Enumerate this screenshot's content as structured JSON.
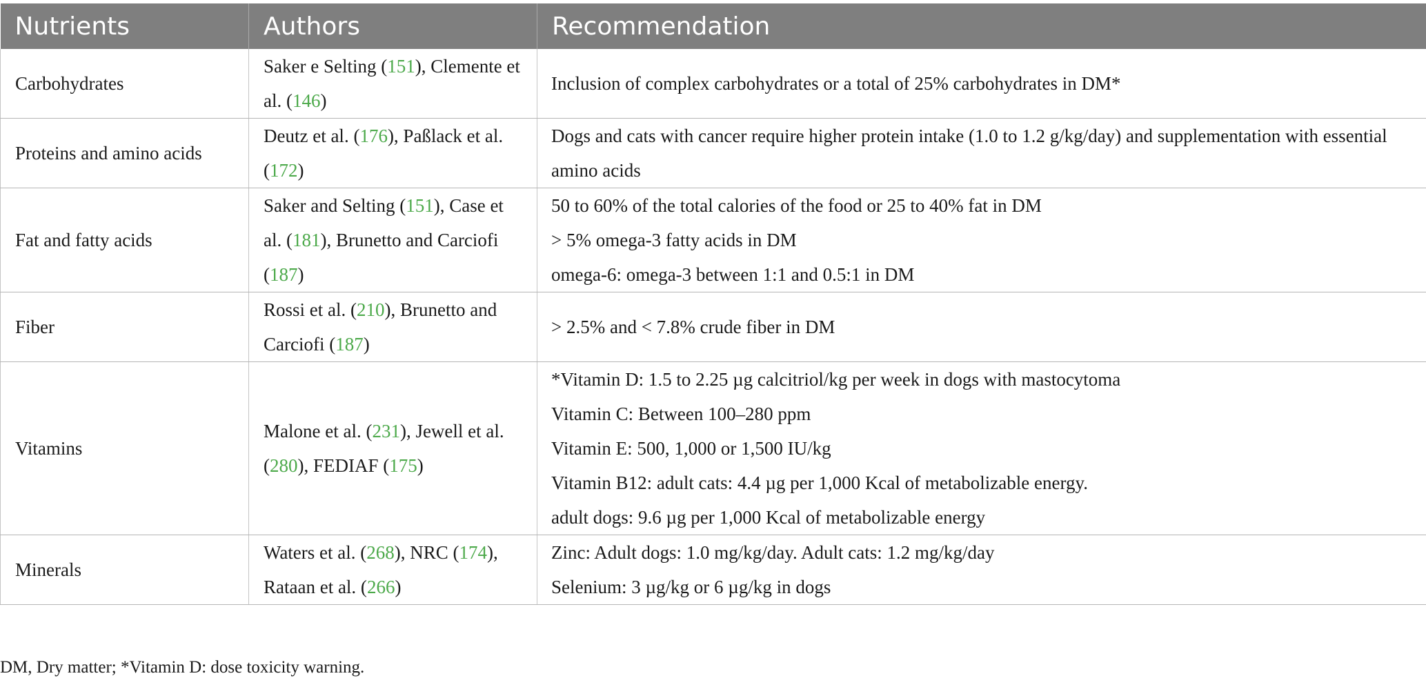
{
  "table": {
    "headers": [
      "Nutrients",
      "Authors",
      "Recommendation"
    ],
    "rows": [
      {
        "nutrient": "Carbohydrates",
        "authors": [
          {
            "text": "Saker e Selting ("
          },
          {
            "ref": "151"
          },
          {
            "text": "), Clemente et al. ("
          },
          {
            "ref": "146"
          },
          {
            "text": ")"
          }
        ],
        "recommendation": [
          "Inclusion of complex carbohydrates or a total of 25% carbohydrates in DM*"
        ]
      },
      {
        "nutrient": "Proteins and amino acids",
        "authors": [
          {
            "text": "Deutz et al. ("
          },
          {
            "ref": "176"
          },
          {
            "text": "), Paßlack et al. ("
          },
          {
            "ref": "172"
          },
          {
            "text": ")"
          }
        ],
        "recommendation": [
          "Dogs and cats with cancer require higher protein intake (1.0 to 1.2 g/kg/day) and supplementation with essential amino acids"
        ]
      },
      {
        "nutrient": "Fat and fatty acids",
        "authors": [
          {
            "text": "Saker and Selting ("
          },
          {
            "ref": "151"
          },
          {
            "text": "), Case et al. ("
          },
          {
            "ref": "181"
          },
          {
            "text": "), Brunetto and Carciofi ("
          },
          {
            "ref": "187"
          },
          {
            "text": ")"
          }
        ],
        "recommendation": [
          "50 to 60% of the total calories of the food or 25 to 40% fat in DM",
          "> 5% omega-3 fatty acids in DM",
          "omega-6: omega-3 between 1:1 and 0.5:1 in DM"
        ]
      },
      {
        "nutrient": "Fiber",
        "authors": [
          {
            "text": "Rossi et al. ("
          },
          {
            "ref": "210"
          },
          {
            "text": "), Brunetto and Carciofi ("
          },
          {
            "ref": "187"
          },
          {
            "text": ")"
          }
        ],
        "recommendation": [
          "> 2.5% and < 7.8% crude fiber in DM"
        ]
      },
      {
        "nutrient": "Vitamins",
        "authors": [
          {
            "text": "Malone et al. ("
          },
          {
            "ref": "231"
          },
          {
            "text": "), Jewell et al. ("
          },
          {
            "ref": "280"
          },
          {
            "text": "), FEDIAF ("
          },
          {
            "ref": "175"
          },
          {
            "text": ")"
          }
        ],
        "recommendation": [
          "*Vitamin D: 1.5 to 2.25 µg calcitriol/kg per week in dogs with mastocytoma",
          "Vitamin C: Between 100–280 ppm",
          "Vitamin E: 500, 1,000 or 1,500 IU/kg",
          "Vitamin B12: adult cats: 4.4 µg per 1,000 Kcal of metabolizable energy.",
          "adult dogs: 9.6 µg per 1,000 Kcal of metabolizable energy"
        ]
      },
      {
        "nutrient": "Minerals",
        "authors": [
          {
            "text": "Waters et al. ("
          },
          {
            "ref": "268"
          },
          {
            "text": "), NRC ("
          },
          {
            "ref": "174"
          },
          {
            "text": "), Rataan et al. ("
          },
          {
            "ref": "266"
          },
          {
            "text": ")"
          }
        ],
        "recommendation": [
          "Zinc: Adult dogs: 1.0 mg/kg/day. Adult cats: 1.2 mg/kg/day",
          "Selenium: 3 µg/kg or 6 µg/kg in dogs"
        ]
      }
    ]
  },
  "footnote": "DM, Dry matter; *Vitamin D: dose toxicity warning.",
  "colors": {
    "header_bg": "#7f7f7f",
    "header_text": "#ffffff",
    "reference_link": "#4ca94a"
  }
}
